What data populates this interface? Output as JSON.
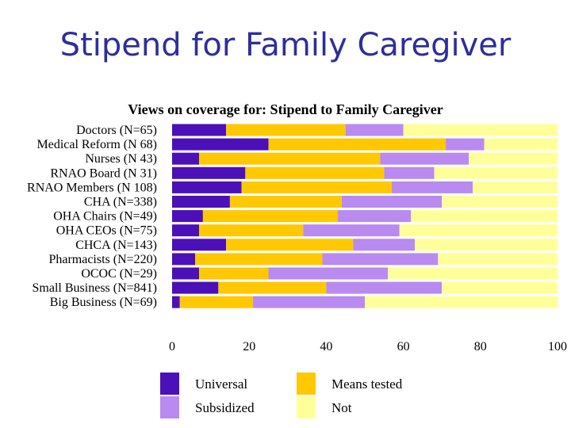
{
  "slide": {
    "title": "Stipend for Family Caregiver"
  },
  "colors": {
    "universal": "#4b10b8",
    "means_tested": "#ffc800",
    "subsidized": "#b98af0",
    "not": "#ffff99"
  },
  "chart_data": {
    "type": "bar",
    "orientation": "horizontal",
    "stacked": true,
    "title": "Views on coverage for: Stipend to Family Caregiver",
    "xlabel": "",
    "ylabel": "",
    "xlim": [
      0,
      100
    ],
    "xticks": [
      "0",
      "20",
      "40",
      "60",
      "80",
      "100"
    ],
    "grid": false,
    "legend_position": "bottom",
    "categories": [
      "Doctors (N=65)",
      "Medical Reform (N 68)",
      "Nurses (N 43)",
      "RNAO Board (N 31)",
      "RNAO Members (N 108)",
      "CHA (N=338)",
      "OHA Chairs (N=49)",
      "OHA CEOs (N=75)",
      "CHCA (N=143)",
      "Pharmacists (N=220)",
      "OCOC (N=29)",
      "Small Business (N=841)",
      "Big Business (N=69)"
    ],
    "series": [
      {
        "name": "Universal",
        "color_key": "universal",
        "values": [
          14,
          25,
          7,
          19,
          18,
          15,
          8,
          7,
          14,
          6,
          7,
          12,
          2
        ]
      },
      {
        "name": "Means tested",
        "color_key": "means_tested",
        "values": [
          31,
          46,
          47,
          36,
          39,
          29,
          35,
          27,
          33,
          33,
          18,
          28,
          19
        ]
      },
      {
        "name": "Subsidized",
        "color_key": "subsidized",
        "values": [
          15,
          10,
          23,
          13,
          21,
          26,
          19,
          25,
          16,
          30,
          31,
          30,
          29
        ]
      },
      {
        "name": "Not",
        "color_key": "not",
        "values": [
          40,
          19,
          23,
          32,
          22,
          30,
          38,
          41,
          37,
          31,
          44,
          30,
          50
        ]
      }
    ]
  }
}
